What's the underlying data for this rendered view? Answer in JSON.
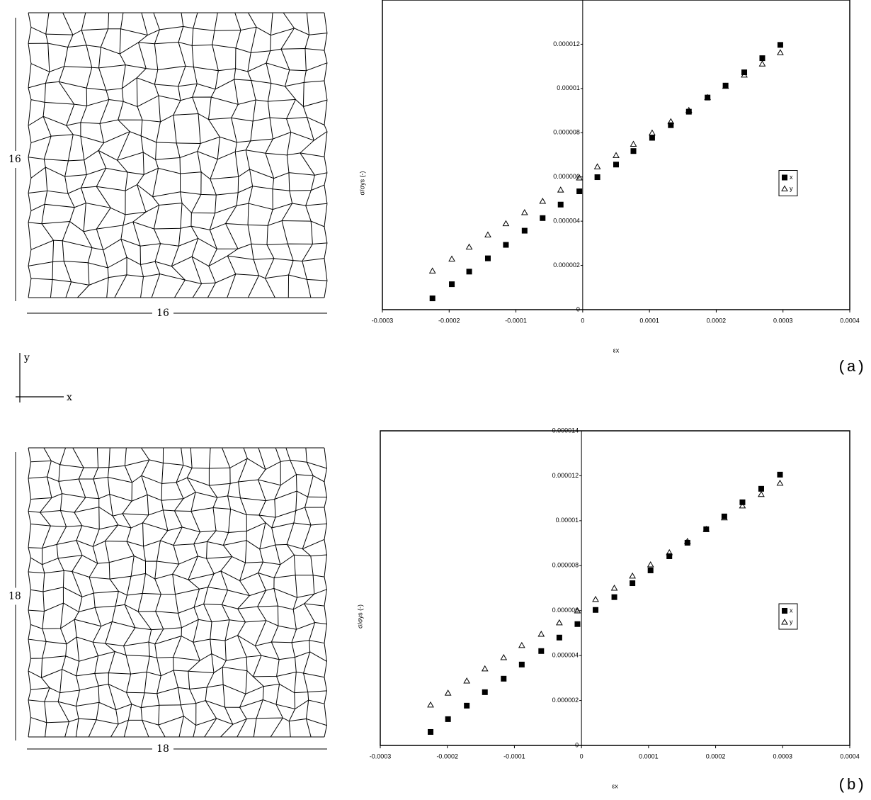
{
  "panel_labels": [
    "(a)",
    "(b)"
  ],
  "meshes": [
    {
      "height_label": "16",
      "width_label": "16"
    },
    {
      "height_label": "18",
      "width_label": "18"
    }
  ],
  "axes_icon": {
    "y": "y",
    "x": "x"
  },
  "chart_data": [
    {
      "type": "scatter",
      "x_label": "εx",
      "y_label": "σ/σys (-)",
      "xlim": [
        -0.0003,
        0.0004
      ],
      "xticks": [
        -0.0003,
        -0.0002,
        -0.0001,
        0,
        0.0001,
        0.0002,
        0.0003,
        0.0004
      ],
      "ylim": [
        0,
        1.4e-05
      ],
      "yticks": [
        0,
        2e-06,
        4e-06,
        6e-06,
        8e-06,
        1e-05,
        1.2e-05
      ],
      "legend": "right",
      "grid": false,
      "x": [
        -0.000225,
        -0.000196,
        -0.00017,
        -0.000142,
        -0.000115,
        -8.7e-05,
        -6e-05,
        -3.3e-05,
        -5e-06,
        2.2e-05,
        5e-05,
        7.6e-05,
        0.000104,
        0.000132,
        0.000159,
        0.000187,
        0.000214,
        0.000242,
        0.000269,
        0.000296
      ],
      "series": [
        {
          "name": "x",
          "color": "#000000",
          "marker": "square",
          "values": [
            5.1e-07,
            1.15e-06,
            1.72e-06,
            2.32e-06,
            2.93e-06,
            3.57e-06,
            4.14e-06,
            4.75e-06,
            5.35e-06,
            5.99e-06,
            6.56e-06,
            7.17e-06,
            7.77e-06,
            8.34e-06,
            8.95e-06,
            9.59e-06,
            1.013e-05,
            1.073e-05,
            1.137e-05,
            1.197e-05
          ]
        },
        {
          "name": "y",
          "color": "#000000",
          "marker": "triangle",
          "values": [
            1.75e-06,
            2.29e-06,
            2.83e-06,
            3.38e-06,
            3.89e-06,
            4.39e-06,
            4.9e-06,
            5.41e-06,
            5.96e-06,
            6.46e-06,
            6.97e-06,
            7.48e-06,
            7.99e-06,
            8.5e-06,
            9.01e-06,
            9.59e-06,
            1.01e-05,
            1.061e-05,
            1.111e-05,
            1.162e-05
          ]
        }
      ]
    },
    {
      "type": "scatter",
      "x_label": "εx",
      "y_label": "σ/σys (-)",
      "xlim": [
        -0.0003,
        0.0004
      ],
      "xticks": [
        -0.0003,
        -0.0002,
        -0.0001,
        0,
        0.0001,
        0.0002,
        0.0003,
        0.0004
      ],
      "ylim": [
        0,
        1.4e-05
      ],
      "yticks": [
        0,
        2e-06,
        4e-06,
        6e-06,
        8e-06,
        1e-05,
        1.2e-05,
        1.4e-05
      ],
      "legend": "right",
      "grid": false,
      "x": [
        -0.000225,
        -0.000199,
        -0.000171,
        -0.000144,
        -0.000116,
        -8.9e-05,
        -6e-05,
        -3.3e-05,
        -6e-06,
        2.1e-05,
        4.9e-05,
        7.6e-05,
        0.000103,
        0.000131,
        0.000158,
        0.000186,
        0.000213,
        0.00024,
        0.000268,
        0.000296
      ],
      "series": [
        {
          "name": "x",
          "color": "#000000",
          "marker": "square",
          "values": [
            6e-07,
            1.17e-06,
            1.77e-06,
            2.37e-06,
            2.97e-06,
            3.6e-06,
            4.2e-06,
            4.8e-06,
            5.4e-06,
            6.03e-06,
            6.6e-06,
            7.22e-06,
            7.79e-06,
            8.42e-06,
            9.02e-06,
            9.62e-06,
            1.019e-05,
            1.082e-05,
            1.142e-05,
            1.205e-05
          ]
        },
        {
          "name": "y",
          "color": "#000000",
          "marker": "triangle",
          "values": [
            1.8e-06,
            2.33e-06,
            2.87e-06,
            3.41e-06,
            3.91e-06,
            4.45e-06,
            4.95e-06,
            5.46e-06,
            5.99e-06,
            6.5e-06,
            7e-06,
            7.54e-06,
            8.04e-06,
            8.58e-06,
            9.08e-06,
            9.62e-06,
            1.013e-05,
            1.066e-05,
            1.117e-05,
            1.167e-05
          ]
        }
      ]
    }
  ]
}
